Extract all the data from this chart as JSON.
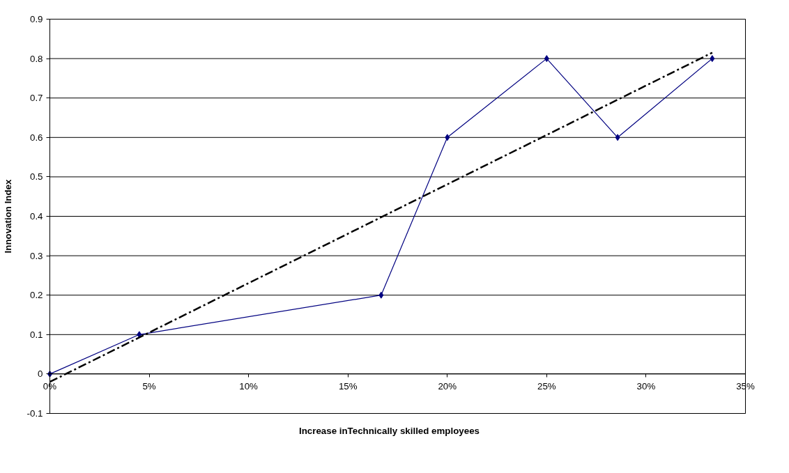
{
  "chart_data": {
    "type": "line",
    "xlabel": "Increase inTechnically skilled employees",
    "ylabel": "Innovation Index",
    "series": [
      {
        "color": "#000080",
        "marker": "diamond",
        "line_style": "solid",
        "x": [
          0,
          4.5,
          16.67,
          20,
          25,
          28.57,
          33.33
        ],
        "values": [
          0,
          0.1,
          0.2,
          0.6,
          0.8,
          0.6,
          0.8
        ]
      },
      {
        "color": "#000000",
        "marker": "none",
        "line_style": "dashed",
        "x": [
          0,
          33.33
        ],
        "values": [
          -0.02,
          0.815
        ]
      }
    ],
    "xlim": [
      0,
      35
    ],
    "xticks": [
      {
        "value": 0,
        "label": "0%"
      },
      {
        "value": 5,
        "label": "5%"
      },
      {
        "value": 10,
        "label": "10%"
      },
      {
        "value": 15,
        "label": "15%"
      },
      {
        "value": 20,
        "label": "20%"
      },
      {
        "value": 25,
        "label": "25%"
      },
      {
        "value": 30,
        "label": "30%"
      },
      {
        "value": 35,
        "label": "35%"
      }
    ],
    "ylim": [
      -0.1,
      0.9
    ],
    "yticks": [
      -0.1,
      0,
      0.1,
      0.2,
      0.3,
      0.4,
      0.5,
      0.6,
      0.7,
      0.8,
      0.9
    ],
    "grid": "y"
  }
}
